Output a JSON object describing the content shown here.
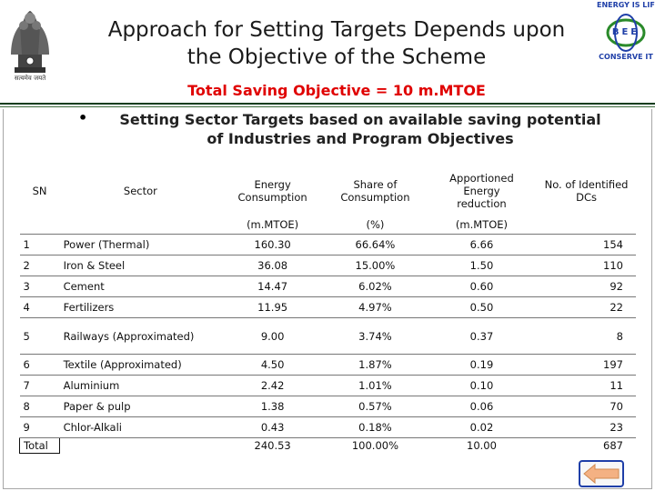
{
  "header": {
    "title_line1": "Approach for Setting Targets Depends upon",
    "title_line2": "the Objective of the Scheme",
    "objective": "Total Saving Objective = 10 m.MTOE",
    "emblem_caption": "सत्यमेव जयते",
    "logo": {
      "top_text": "ENERGY IS LIFE",
      "middle_text": "BEE",
      "bottom_text": "CONSERVE IT"
    }
  },
  "bullet": {
    "line1": "Setting Sector Targets based on available saving potential",
    "line2": "of Industries and Program Objectives"
  },
  "table": {
    "headers": {
      "sn": "SN",
      "sector": "Sector",
      "energy_line1": "Energy",
      "energy_line2": "Consumption",
      "share_line1": "Share of",
      "share_line2": "Consumption",
      "apportioned_line1": "Apportioned Energy",
      "apportioned_line2": "reduction",
      "dcs_line1": "No. of Identified",
      "dcs_line2": "DCs"
    },
    "units": {
      "energy": "(m.MTOE)",
      "share": "(%)",
      "apportioned": "(m.MTOE)"
    },
    "rows": [
      {
        "sn": "1",
        "sector": "Power (Thermal)",
        "energy": "160.30",
        "share": "66.64%",
        "reduction": "6.66",
        "dcs": "154"
      },
      {
        "sn": "2",
        "sector": "Iron & Steel",
        "energy": "36.08",
        "share": "15.00%",
        "reduction": "1.50",
        "dcs": "110"
      },
      {
        "sn": "3",
        "sector": "Cement",
        "energy": "14.47",
        "share": "6.02%",
        "reduction": "0.60",
        "dcs": "92"
      },
      {
        "sn": "4",
        "sector": "Fertilizers",
        "energy": "11.95",
        "share": "4.97%",
        "reduction": "0.50",
        "dcs": "22"
      },
      {
        "sn": "5",
        "sector": "Railways (Approximated)",
        "energy": "9.00",
        "share": "3.74%",
        "reduction": "0.37",
        "dcs": "8"
      },
      {
        "sn": "6",
        "sector": "Textile (Approximated)",
        "energy": "4.50",
        "share": "1.87%",
        "reduction": "0.19",
        "dcs": "197"
      },
      {
        "sn": "7",
        "sector": "Aluminium",
        "energy": "2.42",
        "share": "1.01%",
        "reduction": "0.10",
        "dcs": "11"
      },
      {
        "sn": "8",
        "sector": "Paper & pulp",
        "energy": "1.38",
        "share": "0.57%",
        "reduction": "0.06",
        "dcs": "70"
      },
      {
        "sn": "9",
        "sector": "Chlor-Alkali",
        "energy": "0.43",
        "share": "0.18%",
        "reduction": "0.02",
        "dcs": "23"
      }
    ],
    "total": {
      "label": "Total",
      "energy": "240.53",
      "share": "100.00%",
      "reduction": "10.00",
      "dcs": "687"
    }
  },
  "navigation": {
    "back_icon": "left-arrow-icon"
  },
  "colors": {
    "objective": "#e00000",
    "rule": "#0f3d1e",
    "logo_blue": "#1f3fa8",
    "logo_green": "#2a8a2a",
    "back_arrow": "#f4b183"
  }
}
